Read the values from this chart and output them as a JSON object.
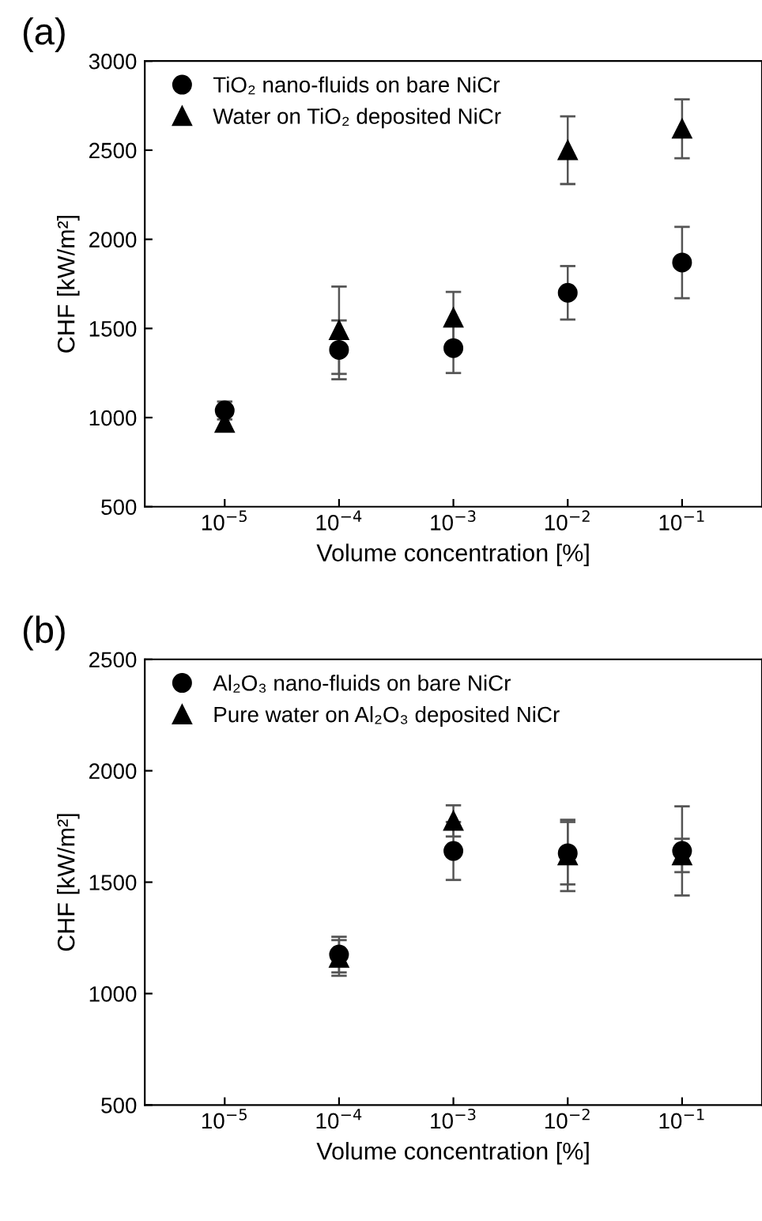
{
  "chart_data": [
    {
      "type": "scatter",
      "title": "(a)",
      "xlabel": "Volume concentration [%]",
      "ylabel": "CHF [kW/m²]",
      "x": [
        1e-05,
        0.0001,
        0.001,
        0.01,
        0.1
      ],
      "series": [
        {
          "name": "TiO₂ nano-fluids on bare NiCr",
          "color": "#000000",
          "marker": "circle",
          "values": [
            1040,
            1380,
            1390,
            1700,
            1870
          ],
          "errors": [
            50,
            165,
            140,
            150,
            200
          ]
        },
        {
          "name": "Water on TiO₂ deposited NiCr",
          "color": "#000000",
          "marker": "triangle",
          "values": [
            970,
            1490,
            1560,
            2500,
            2620
          ],
          "errors": [
            40,
            245,
            145,
            190,
            165
          ]
        }
      ],
      "log": "x",
      "xlim": [
        2e-06,
        0.5
      ],
      "ylim": [
        500,
        3000
      ],
      "xticks": [
        {
          "value": 1e-05,
          "label": "10$^{−5}$"
        },
        {
          "value": 0.0001,
          "label": "10$^{−4}$"
        },
        {
          "value": 0.001,
          "label": "10$^{−3}$"
        },
        {
          "value": 0.01,
          "label": "10$^{−2}$"
        },
        {
          "value": 0.1,
          "label": "10$^{−1}$"
        }
      ],
      "yticks": [
        500,
        1000,
        1500,
        2000,
        2500,
        3000
      ],
      "grid": false,
      "legend": "top left"
    },
    {
      "type": "scatter",
      "title": "(b)",
      "xlabel": "Volume concentration [%]",
      "ylabel": "CHF [kW/m²]",
      "x": [
        0.0001,
        0.001,
        0.01,
        0.1
      ],
      "series": [
        {
          "name": "Al₂O₃ nano-fluids on bare NiCr",
          "color": "#000000",
          "marker": "circle",
          "values": [
            1175,
            1640,
            1630,
            1640
          ],
          "errors": [
            80,
            130,
            140,
            200
          ]
        },
        {
          "name": "Pure water on Al₂O₃ deposited NiCr",
          "color": "#000000",
          "marker": "triangle",
          "values": [
            1160,
            1775,
            1620,
            1620
          ],
          "errors": [
            80,
            70,
            160,
            75
          ]
        }
      ],
      "log": "x",
      "xlim": [
        2e-06,
        0.5
      ],
      "ylim": [
        500,
        2500
      ],
      "xticks": [
        {
          "value": 1e-05,
          "label": "10$^{−5}$"
        },
        {
          "value": 0.0001,
          "label": "10$^{−4}$"
        },
        {
          "value": 0.001,
          "label": "10$^{−3}$"
        },
        {
          "value": 0.01,
          "label": "10$^{−2}$"
        },
        {
          "value": 0.1,
          "label": "10$^{−1}$"
        }
      ],
      "yticks": [
        500,
        1000,
        1500,
        2000,
        2500
      ],
      "grid": false,
      "legend": "top left"
    }
  ]
}
